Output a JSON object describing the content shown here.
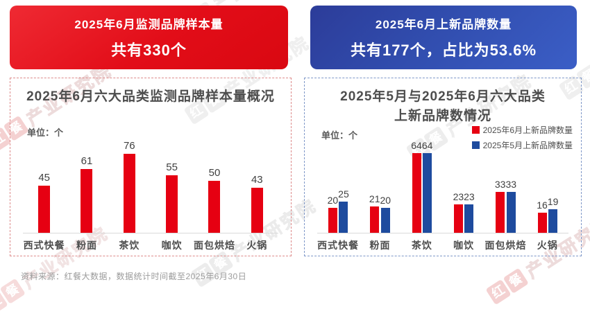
{
  "report": {
    "summary_cards": {
      "left": {
        "line1": "2025年6月监测品牌样本量",
        "line2": "共有330个"
      },
      "right": {
        "line1": "2025年6月上新品牌数量",
        "line2": "共有177个，占比为53.6%"
      }
    },
    "footer_note": "资料来源：红餐大数据，数据统计时间截至2025年6月30日",
    "watermark": {
      "brand_char1": "红",
      "brand_char2": "餐",
      "suffix": "产业研究院"
    }
  },
  "colors": {
    "accent_red": "#e60012",
    "accent_blue": "#1e4b9e",
    "card_red_bg": "#e20d18",
    "card_blue_bg": "#314dae",
    "panel_border_red": "#dd8a8a",
    "panel_border_blue": "#7e97c8"
  },
  "chart_data": [
    {
      "type": "bar",
      "title": "2025年6月六大品类监测品牌样本量概况",
      "unit_label": "单位：个",
      "categories": [
        "西式快餐",
        "粉面",
        "茶饮",
        "咖饮",
        "面包烘焙",
        "火锅"
      ],
      "values": [
        45,
        61,
        76,
        55,
        50,
        43
      ],
      "bar_color": "#e60012",
      "ylim": [
        0,
        80
      ],
      "grid": false,
      "legend_position": "none"
    },
    {
      "type": "grouped_bar",
      "title_lines": [
        "2025年5月与2025年6月六大品类",
        "上新品牌数情况"
      ],
      "unit_label": "单位：个",
      "categories": [
        "西式快餐",
        "粉面",
        "茶饮",
        "咖饮",
        "面包烘焙",
        "火锅"
      ],
      "series": [
        {
          "name": "2025年6月上新品牌数量",
          "color": "#e60012",
          "values": [
            20,
            21,
            64,
            23,
            33,
            16
          ]
        },
        {
          "name": "2025年5月上新品牌数量",
          "color": "#1e4b9e",
          "values": [
            25,
            20,
            64,
            23,
            33,
            19
          ]
        }
      ],
      "ylim": [
        0,
        70
      ],
      "grid": false,
      "legend_position": "top-right"
    }
  ]
}
